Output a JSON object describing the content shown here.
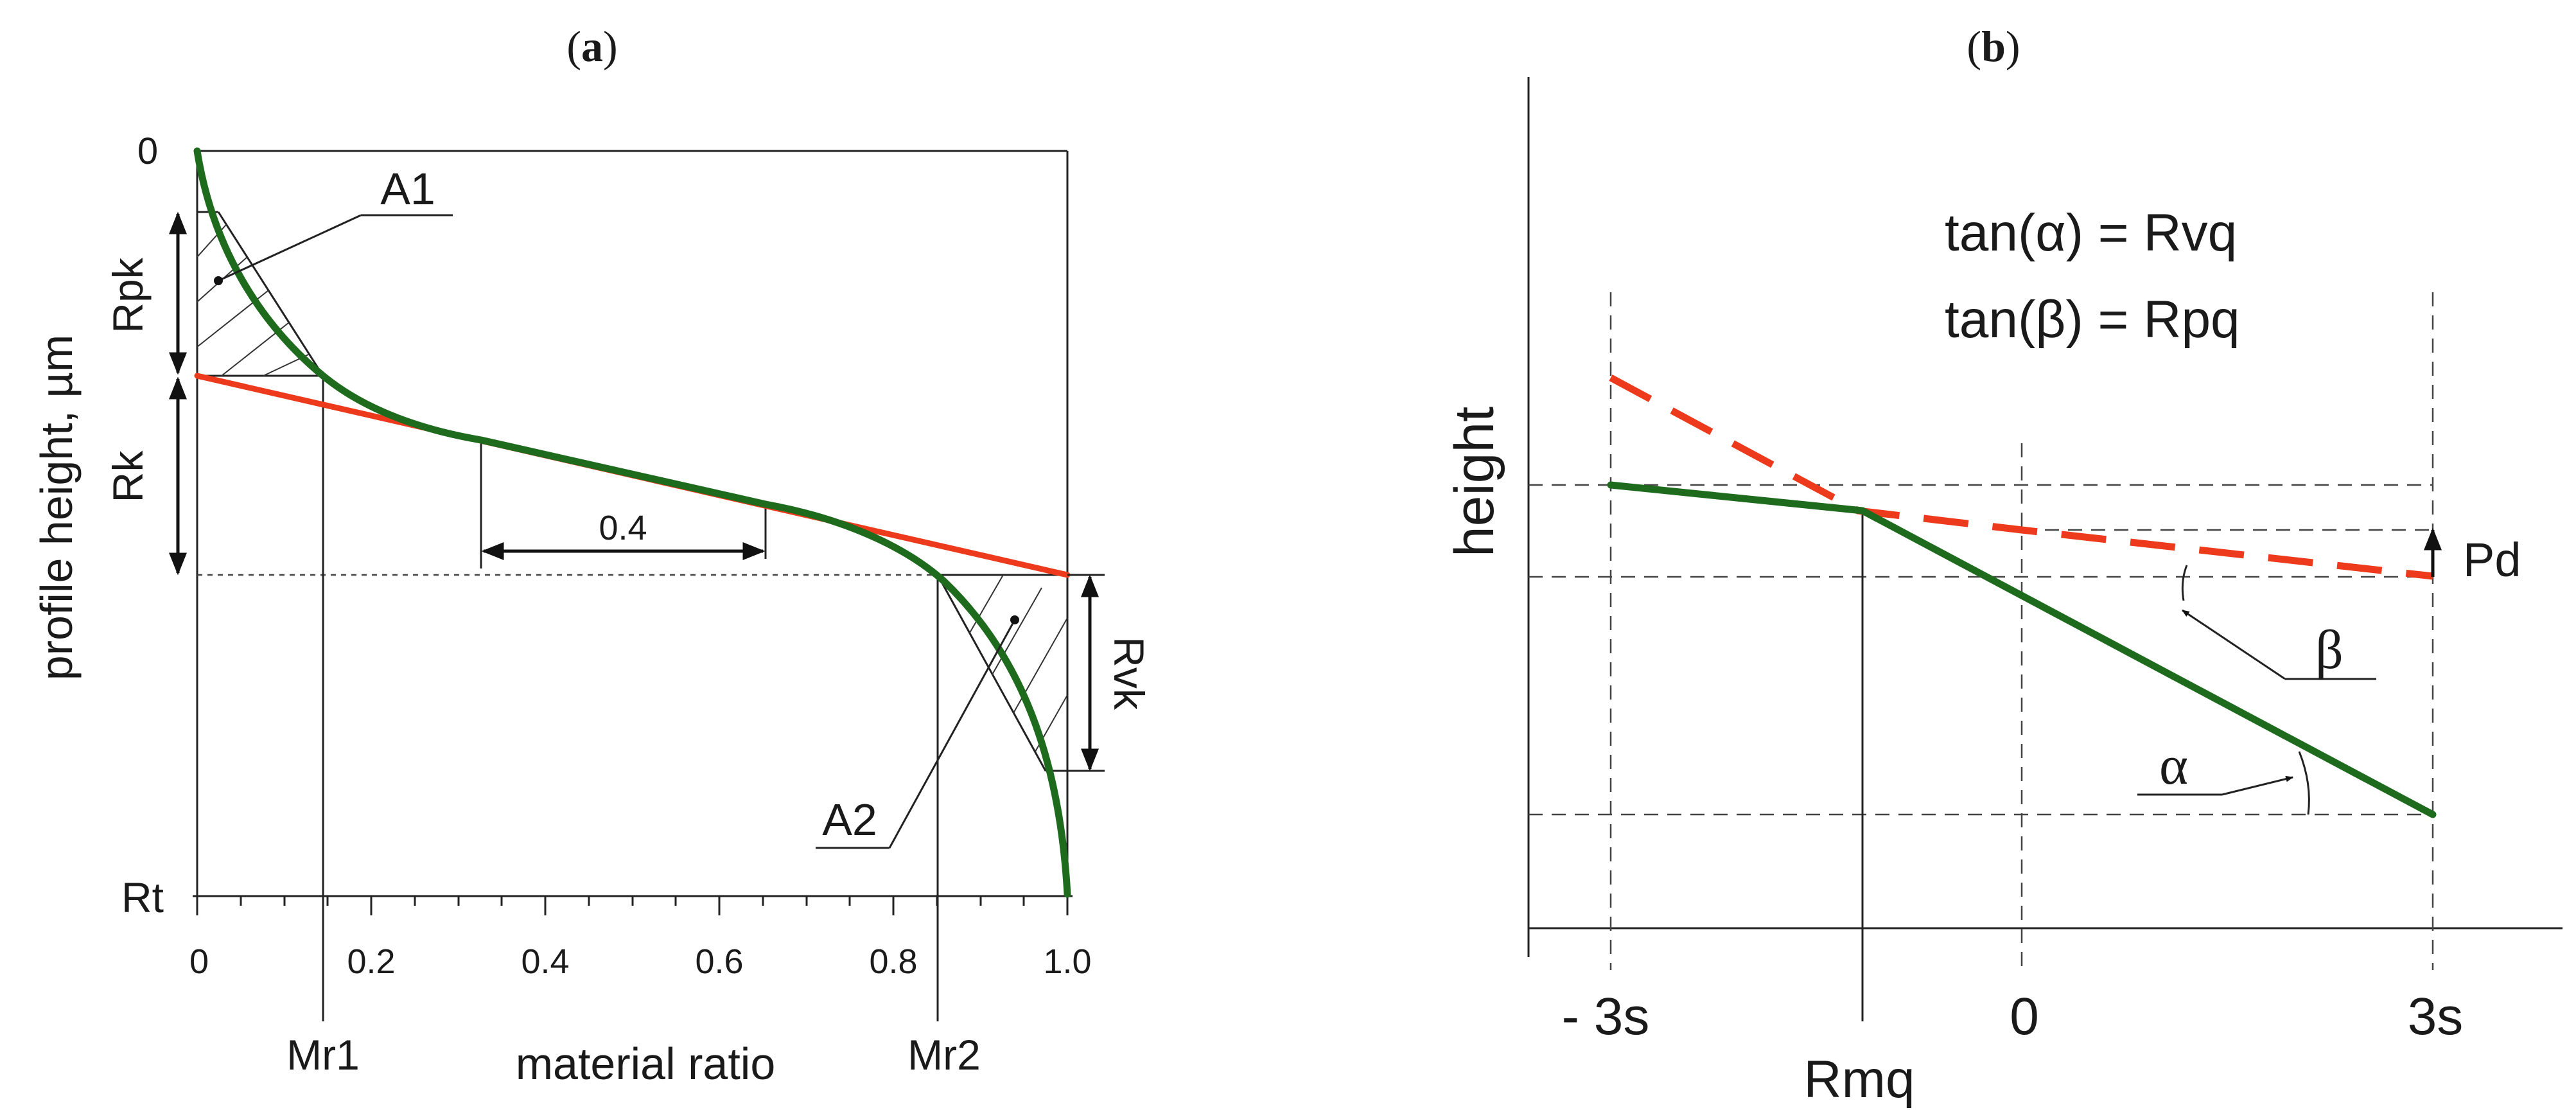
{
  "panel_a": {
    "title_open": "(",
    "title_letter": "a",
    "title_close": ")",
    "y_axis_label": "profile height, µm",
    "x_axis_label": "material ratio",
    "y_top_tick": "0",
    "y_bottom_tick": "Rt",
    "x_ticks": [
      "0",
      "0.2",
      "0.4",
      "0.6",
      "0.8",
      "1.0"
    ],
    "labels": {
      "a1": "A1",
      "a2": "A2",
      "rpk": "Rpk",
      "rk": "Rk",
      "rvk": "Rvk",
      "mr1": "Mr1",
      "mr2": "Mr2",
      "span": "0.4"
    },
    "colors": {
      "curve": "#1e6b1e",
      "line": "#ee3a1c"
    }
  },
  "panel_b": {
    "title_open": "(",
    "title_letter": "b",
    "title_close": ")",
    "y_axis_label": "height",
    "eq1": "tan(α) = Rvq",
    "eq2": "tan(β) = Rpq",
    "x_ticks": [
      "- 3s",
      "0",
      "3s"
    ],
    "rmq": "Rmq",
    "pd": "Pd",
    "alpha": "α",
    "beta": "β",
    "colors": {
      "curve": "#1e6b1e",
      "dashed": "#ee3a1c"
    }
  }
}
